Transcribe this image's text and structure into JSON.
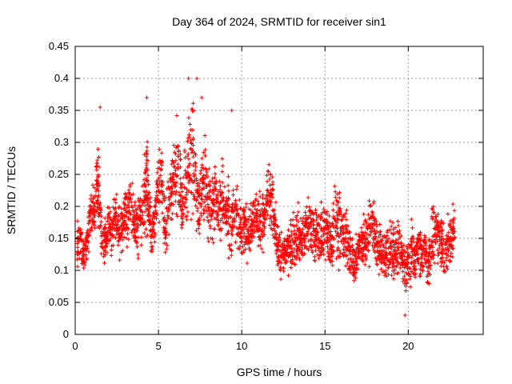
{
  "chart_data": {
    "type": "scatter",
    "title": "Day 364 of 2024, SRMTID for receiver sin1",
    "xlabel": "GPS time / hours",
    "ylabel": "SRMTID / TECUs",
    "xlim": [
      0,
      24.5
    ],
    "ylim": [
      0,
      0.45
    ],
    "xticks": [
      0,
      5,
      10,
      15,
      20
    ],
    "xtick_labels": [
      "0",
      "5",
      "10",
      "15",
      "20"
    ],
    "yticks": [
      0,
      0.05,
      0.1,
      0.15,
      0.2,
      0.25,
      0.3,
      0.35,
      0.4,
      0.45
    ],
    "ytick_labels": [
      "0",
      "0.05",
      "0.1",
      "0.15",
      "0.2",
      "0.25",
      "0.3",
      "0.35",
      "0.4",
      "0.45"
    ],
    "grid": true,
    "marker": "+",
    "color": "#ff0000",
    "series": [
      {
        "name": "SRMTID sin1",
        "x": [
          0.1,
          0.3,
          0.5,
          0.7,
          0.9,
          1.1,
          1.3,
          1.4,
          1.6,
          1.8,
          2.0,
          2.2,
          2.4,
          2.6,
          2.8,
          3.0,
          3.2,
          3.4,
          3.6,
          3.8,
          4.0,
          4.2,
          4.3,
          4.4,
          4.6,
          4.8,
          5.0,
          5.2,
          5.4,
          5.6,
          5.8,
          6.0,
          6.2,
          6.4,
          6.6,
          6.8,
          7.0,
          7.2,
          7.4,
          7.6,
          7.8,
          8.0,
          8.2,
          8.4,
          8.6,
          8.8,
          9.0,
          9.2,
          9.4,
          9.6,
          9.8,
          10.0,
          10.2,
          10.4,
          10.6,
          10.8,
          11.0,
          11.2,
          11.4,
          11.6,
          11.8,
          12.0,
          12.2,
          12.4,
          12.6,
          12.8,
          13.0,
          13.2,
          13.4,
          13.6,
          13.8,
          14.0,
          14.2,
          14.4,
          14.6,
          14.8,
          15.0,
          15.2,
          15.4,
          15.6,
          15.8,
          16.0,
          16.2,
          16.4,
          16.6,
          16.8,
          17.0,
          17.2,
          17.4,
          17.6,
          17.8,
          18.0,
          18.2,
          18.4,
          18.6,
          18.8,
          19.0,
          19.2,
          19.4,
          19.6,
          19.8,
          20.0,
          20.2,
          20.4,
          20.6,
          20.8,
          21.0,
          21.2,
          21.4,
          21.6,
          21.8,
          22.0,
          22.2,
          22.4,
          22.6,
          22.8
        ],
        "y_center": [
          0.14,
          0.15,
          0.12,
          0.14,
          0.18,
          0.2,
          0.22,
          0.24,
          0.15,
          0.14,
          0.17,
          0.16,
          0.19,
          0.16,
          0.17,
          0.19,
          0.2,
          0.2,
          0.16,
          0.17,
          0.19,
          0.22,
          0.26,
          0.2,
          0.16,
          0.19,
          0.23,
          0.24,
          0.16,
          0.19,
          0.23,
          0.27,
          0.25,
          0.2,
          0.23,
          0.27,
          0.28,
          0.25,
          0.19,
          0.22,
          0.24,
          0.21,
          0.19,
          0.22,
          0.2,
          0.21,
          0.19,
          0.18,
          0.17,
          0.2,
          0.17,
          0.16,
          0.18,
          0.16,
          0.17,
          0.19,
          0.18,
          0.17,
          0.19,
          0.22,
          0.2,
          0.17,
          0.13,
          0.12,
          0.13,
          0.14,
          0.14,
          0.15,
          0.16,
          0.14,
          0.16,
          0.17,
          0.17,
          0.15,
          0.16,
          0.15,
          0.17,
          0.15,
          0.14,
          0.19,
          0.17,
          0.16,
          0.15,
          0.14,
          0.12,
          0.11,
          0.13,
          0.15,
          0.14,
          0.15,
          0.18,
          0.16,
          0.13,
          0.13,
          0.12,
          0.14,
          0.13,
          0.12,
          0.14,
          0.12,
          0.1,
          0.11,
          0.13,
          0.12,
          0.14,
          0.12,
          0.13,
          0.11,
          0.14,
          0.15,
          0.16,
          0.15,
          0.12,
          0.14,
          0.16,
          0.17
        ],
        "y_spread": [
          0.03,
          0.03,
          0.025,
          0.03,
          0.035,
          0.04,
          0.05,
          0.06,
          0.03,
          0.03,
          0.035,
          0.035,
          0.04,
          0.035,
          0.04,
          0.04,
          0.04,
          0.045,
          0.035,
          0.04,
          0.04,
          0.06,
          0.08,
          0.045,
          0.035,
          0.04,
          0.05,
          0.05,
          0.04,
          0.05,
          0.06,
          0.07,
          0.06,
          0.05,
          0.06,
          0.08,
          0.09,
          0.07,
          0.05,
          0.05,
          0.06,
          0.05,
          0.045,
          0.05,
          0.05,
          0.05,
          0.045,
          0.05,
          0.045,
          0.06,
          0.04,
          0.035,
          0.04,
          0.035,
          0.035,
          0.04,
          0.04,
          0.04,
          0.045,
          0.05,
          0.05,
          0.045,
          0.03,
          0.03,
          0.03,
          0.035,
          0.035,
          0.04,
          0.04,
          0.035,
          0.04,
          0.04,
          0.04,
          0.04,
          0.04,
          0.04,
          0.045,
          0.04,
          0.04,
          0.06,
          0.05,
          0.05,
          0.04,
          0.04,
          0.035,
          0.03,
          0.035,
          0.04,
          0.04,
          0.04,
          0.05,
          0.04,
          0.035,
          0.035,
          0.035,
          0.04,
          0.035,
          0.035,
          0.04,
          0.035,
          0.035,
          0.035,
          0.035,
          0.03,
          0.035,
          0.035,
          0.035,
          0.035,
          0.04,
          0.04,
          0.045,
          0.04,
          0.035,
          0.04,
          0.04,
          0.045
        ],
        "notable_points": [
          {
            "x": 1.5,
            "y": 0.355
          },
          {
            "x": 4.3,
            "y": 0.37
          },
          {
            "x": 6.8,
            "y": 0.4
          },
          {
            "x": 7.3,
            "y": 0.4
          },
          {
            "x": 7.6,
            "y": 0.37
          },
          {
            "x": 9.4,
            "y": 0.35
          },
          {
            "x": 19.8,
            "y": 0.03
          }
        ]
      }
    ]
  }
}
